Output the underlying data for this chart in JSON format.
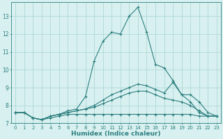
{
  "xlabel": "Humidex (Indice chaleur)",
  "bg_color": "#d8f0f0",
  "grid_color": "#b0d8d8",
  "line_color": "#2d7f7f",
  "xlim": [
    -0.5,
    23.5
  ],
  "ylim": [
    7,
    13.8
  ],
  "yticks": [
    7,
    8,
    9,
    10,
    11,
    12,
    13
  ],
  "xticks": [
    0,
    1,
    2,
    3,
    4,
    5,
    6,
    7,
    8,
    9,
    10,
    11,
    12,
    13,
    14,
    15,
    16,
    17,
    18,
    19,
    20,
    21,
    22,
    23
  ],
  "lines": [
    {
      "x": [
        0,
        1,
        2,
        3,
        4,
        5,
        6,
        7,
        8,
        9,
        10,
        11,
        12,
        13,
        14,
        15,
        16,
        17,
        18,
        19,
        20,
        21,
        22,
        23
      ],
      "y": [
        7.6,
        7.6,
        7.3,
        7.2,
        7.4,
        7.5,
        7.7,
        7.8,
        8.5,
        10.5,
        11.6,
        12.1,
        12.0,
        13.0,
        13.5,
        12.1,
        10.3,
        10.1,
        9.4,
        8.6,
        8.2,
        7.6,
        7.4,
        7.4
      ]
    },
    {
      "x": [
        0,
        1,
        2,
        3,
        4,
        5,
        6,
        7,
        8,
        9,
        10,
        11,
        12,
        13,
        14,
        15,
        16,
        17,
        18,
        19,
        20,
        21,
        22,
        23
      ],
      "y": [
        7.6,
        7.6,
        7.3,
        7.2,
        7.4,
        7.5,
        7.6,
        7.7,
        7.8,
        8.0,
        8.3,
        8.6,
        8.8,
        9.0,
        9.2,
        9.1,
        8.9,
        8.7,
        9.3,
        8.6,
        8.6,
        8.2,
        7.6,
        7.4
      ]
    },
    {
      "x": [
        0,
        1,
        2,
        3,
        4,
        5,
        6,
        7,
        8,
        9,
        10,
        11,
        12,
        13,
        14,
        15,
        16,
        17,
        18,
        19,
        20,
        21,
        22,
        23
      ],
      "y": [
        7.6,
        7.6,
        7.3,
        7.2,
        7.4,
        7.5,
        7.6,
        7.7,
        7.8,
        7.9,
        8.1,
        8.3,
        8.5,
        8.7,
        8.8,
        8.8,
        8.6,
        8.4,
        8.3,
        8.2,
        8.0,
        7.7,
        7.4,
        7.4
      ]
    },
    {
      "x": [
        0,
        1,
        2,
        3,
        4,
        5,
        6,
        7,
        8,
        9,
        10,
        11,
        12,
        13,
        14,
        15,
        16,
        17,
        18,
        19,
        20,
        21,
        22,
        23
      ],
      "y": [
        7.6,
        7.6,
        7.3,
        7.2,
        7.3,
        7.4,
        7.5,
        7.5,
        7.5,
        7.5,
        7.5,
        7.5,
        7.5,
        7.5,
        7.5,
        7.5,
        7.5,
        7.5,
        7.5,
        7.5,
        7.5,
        7.4,
        7.4,
        7.4
      ]
    }
  ]
}
